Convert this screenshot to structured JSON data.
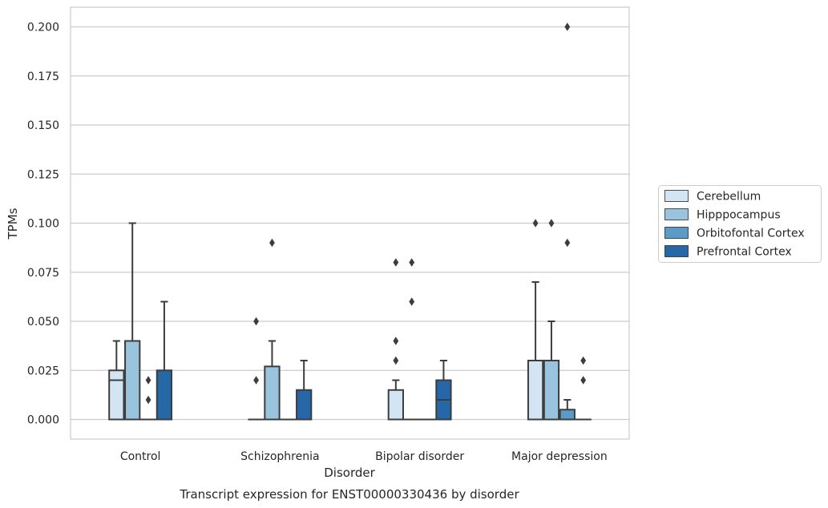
{
  "chart_data": {
    "type": "box",
    "caption": "Transcript expression for ENST00000330436 by disorder",
    "xlabel": "Disorder",
    "ylabel": "TPMs",
    "ylim": [
      -0.01,
      0.21
    ],
    "yticks": [
      "0.000",
      "0.025",
      "0.050",
      "0.075",
      "0.100",
      "0.125",
      "0.150",
      "0.175",
      "0.200"
    ],
    "ytick_values": [
      0,
      0.025,
      0.05,
      0.075,
      0.1,
      0.125,
      0.15,
      0.175,
      0.2
    ],
    "grid": "horizontal",
    "legend_position": "right",
    "categories": [
      "Control",
      "Schizophrenia",
      "Bipolar disorder",
      "Major depression"
    ],
    "series": [
      {
        "name": "Cerebellum",
        "color": "#d3e4f3",
        "boxes": [
          {
            "whislo": 0,
            "q1": 0,
            "med": 0.02,
            "q3": 0.025,
            "whishi": 0.04,
            "fliers": []
          },
          {
            "whislo": 0,
            "q1": 0,
            "med": 0,
            "q3": 0,
            "whishi": 0,
            "fliers": [
              0.02,
              0.05
            ]
          },
          {
            "whislo": 0,
            "q1": 0,
            "med": 0,
            "q3": 0.015,
            "whishi": 0.02,
            "fliers": [
              0.03,
              0.04,
              0.08
            ]
          },
          {
            "whislo": 0,
            "q1": 0,
            "med": 0,
            "q3": 0.03,
            "whishi": 0.07,
            "fliers": [
              0.1
            ]
          }
        ]
      },
      {
        "name": "Hipppocampus",
        "color": "#9ac3dd",
        "boxes": [
          {
            "whislo": 0,
            "q1": 0,
            "med": 0,
            "q3": 0.04,
            "whishi": 0.1,
            "fliers": []
          },
          {
            "whislo": 0,
            "q1": 0,
            "med": 0,
            "q3": 0.027,
            "whishi": 0.04,
            "fliers": [
              0.09
            ]
          },
          {
            "whislo": 0,
            "q1": 0,
            "med": 0,
            "q3": 0,
            "whishi": 0,
            "fliers": [
              0.06,
              0.08
            ]
          },
          {
            "whislo": 0,
            "q1": 0,
            "med": 0,
            "q3": 0.03,
            "whishi": 0.05,
            "fliers": [
              0.1
            ]
          }
        ]
      },
      {
        "name": "Orbitofontal Cortex",
        "color": "#5a9bc8",
        "boxes": [
          {
            "whislo": 0,
            "q1": 0,
            "med": 0,
            "q3": 0,
            "whishi": 0,
            "fliers": [
              0.01,
              0.02
            ]
          },
          {
            "whislo": 0,
            "q1": 0,
            "med": 0,
            "q3": 0,
            "whishi": 0,
            "fliers": []
          },
          {
            "whislo": 0,
            "q1": 0,
            "med": 0,
            "q3": 0,
            "whishi": 0,
            "fliers": []
          },
          {
            "whislo": 0,
            "q1": 0,
            "med": 0,
            "q3": 0.005,
            "whishi": 0.01,
            "fliers": [
              0.09,
              0.2
            ]
          }
        ]
      },
      {
        "name": "Prefrontal Cortex",
        "color": "#2667a8",
        "boxes": [
          {
            "whislo": 0,
            "q1": 0,
            "med": 0,
            "q3": 0.025,
            "whishi": 0.06,
            "fliers": []
          },
          {
            "whislo": 0,
            "q1": 0,
            "med": 0,
            "q3": 0.015,
            "whishi": 0.03,
            "fliers": []
          },
          {
            "whislo": 0,
            "q1": 0,
            "med": 0.01,
            "q3": 0.02,
            "whishi": 0.03,
            "fliers": []
          },
          {
            "whislo": 0,
            "q1": 0,
            "med": 0,
            "q3": 0,
            "whishi": 0,
            "fliers": [
              0.02,
              0.03
            ]
          }
        ]
      }
    ]
  }
}
